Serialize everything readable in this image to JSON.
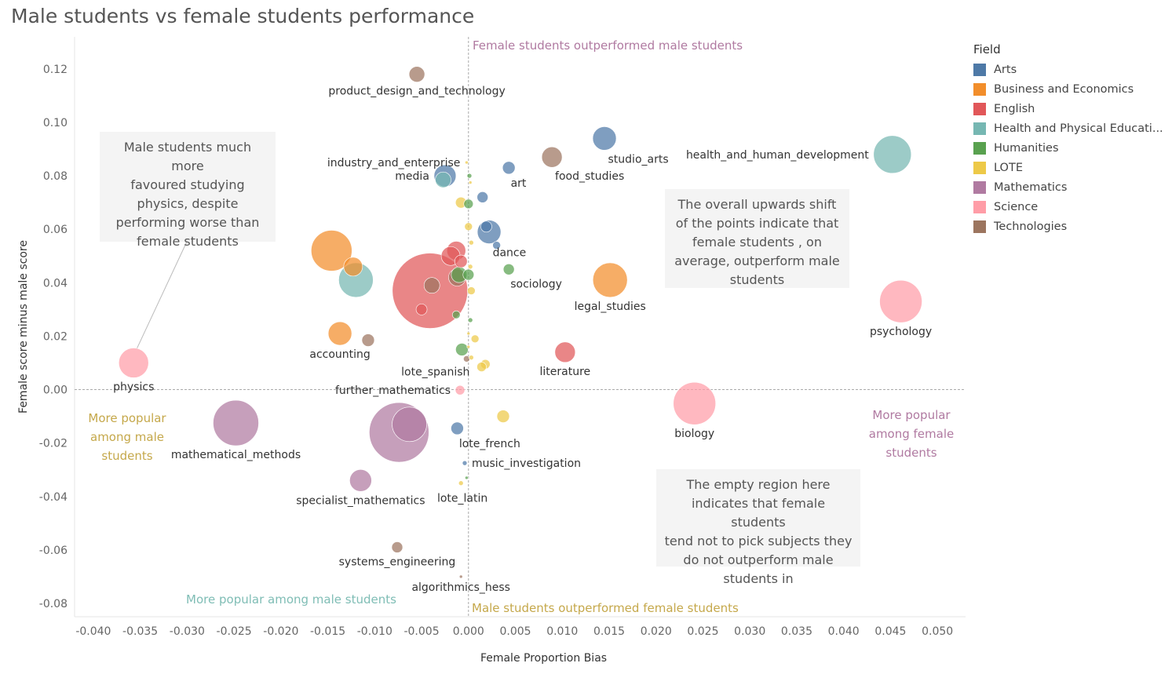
{
  "chart_data": {
    "type": "scatter",
    "title": "Male students vs female students performance",
    "xlabel": "Female Proportion Bias",
    "ylabel": "Female score minus male score",
    "xlim": [
      -0.042,
      0.053
    ],
    "ylim": [
      -0.085,
      0.132
    ],
    "x_ticks": [
      -0.04,
      -0.035,
      -0.03,
      -0.025,
      -0.02,
      -0.015,
      -0.01,
      -0.005,
      0.0,
      0.005,
      0.01,
      0.015,
      0.02,
      0.025,
      0.03,
      0.035,
      0.04,
      0.045,
      0.05
    ],
    "x_tick_labels": [
      "-0.040",
      "-0.035",
      "-0.030",
      "-0.025",
      "-0.020",
      "-0.015",
      "-0.010",
      "-0.005",
      "0.000",
      "0.005",
      "0.010",
      "0.015",
      "0.020",
      "0.025",
      "0.030",
      "0.035",
      "0.040",
      "0.045",
      "0.050"
    ],
    "y_ticks": [
      0.12,
      0.1,
      0.08,
      0.06,
      0.04,
      0.02,
      0.0,
      -0.02,
      -0.04,
      -0.06,
      -0.08
    ],
    "y_tick_labels": [
      "0.12",
      "0.10",
      "0.08",
      "0.06",
      "0.04",
      "0.02",
      "0.00",
      "-0.02",
      "-0.04",
      "-0.06",
      "-0.08"
    ],
    "grid": false,
    "legend": {
      "title": "Field",
      "position": "right",
      "entries": [
        {
          "name": "Arts",
          "color": "#4e79a7"
        },
        {
          "name": "Business and Economics",
          "color": "#f28e2b"
        },
        {
          "name": "English",
          "color": "#e15759"
        },
        {
          "name": "Health and Physical Educati...",
          "color": "#76b7b2"
        },
        {
          "name": "Humanities",
          "color": "#59a14f"
        },
        {
          "name": "LOTE",
          "color": "#edc948"
        },
        {
          "name": "Mathematics",
          "color": "#b07aa1"
        },
        {
          "name": "Science",
          "color": "#ff9da7"
        },
        {
          "name": "Technologies",
          "color": "#9c755f"
        }
      ]
    },
    "points": [
      {
        "label": "product_design_and_technology",
        "field": "Technologies",
        "x": -0.0055,
        "y": 0.118,
        "size": 10,
        "label_pos": "below"
      },
      {
        "label": "industry_and_enterprise",
        "field": "LOTE",
        "x": -0.0002,
        "y": 0.085,
        "size": 2,
        "label_pos": "left"
      },
      {
        "label": "media",
        "field": "Arts",
        "x": -0.0025,
        "y": 0.08,
        "size": 14,
        "label_pos": "left"
      },
      {
        "label": "",
        "field": "Health and Physical Educati...",
        "x": -0.0027,
        "y": 0.0785,
        "size": 10
      },
      {
        "label": "art",
        "field": "Arts",
        "x": 0.0043,
        "y": 0.083,
        "size": 8,
        "label_pos": "belowright"
      },
      {
        "label": "studio_arts",
        "field": "Arts",
        "x": 0.0145,
        "y": 0.094,
        "size": 15,
        "label_pos": "belowright"
      },
      {
        "label": "food_studies",
        "field": "Technologies",
        "x": 0.0089,
        "y": 0.087,
        "size": 13,
        "label_pos": "belowright"
      },
      {
        "label": "health_and_human_development",
        "field": "Health and Physical Educati...",
        "x": 0.0452,
        "y": 0.088,
        "size": 24,
        "label_pos": "left"
      },
      {
        "label": "",
        "field": "Humanities",
        "x": 0.0001,
        "y": 0.08,
        "size": 3
      },
      {
        "label": "",
        "field": "Arts",
        "x": 0.0015,
        "y": 0.072,
        "size": 7
      },
      {
        "label": "",
        "field": "LOTE",
        "x": -0.0008,
        "y": 0.07,
        "size": 7
      },
      {
        "label": "",
        "field": "Humanities",
        "x": 0.0,
        "y": 0.0695,
        "size": 6
      },
      {
        "label": "",
        "field": "LOTE",
        "x": 0.0002,
        "y": 0.0775,
        "size": 2
      },
      {
        "label": "",
        "field": "LOTE",
        "x": 0.0,
        "y": 0.061,
        "size": 5
      },
      {
        "label": "",
        "field": "Arts",
        "x": 0.0019,
        "y": 0.061,
        "size": 7
      },
      {
        "label": "dance",
        "field": "Arts",
        "x": 0.0022,
        "y": 0.059,
        "size": 15,
        "label_pos": "belowright"
      },
      {
        "label": "",
        "field": "Arts",
        "x": 0.003,
        "y": 0.054,
        "size": 5
      },
      {
        "label": "",
        "field": "LOTE",
        "x": 0.0003,
        "y": 0.055,
        "size": 3
      },
      {
        "label": "",
        "field": "Business and Economics",
        "x": -0.0146,
        "y": 0.052,
        "size": 26
      },
      {
        "label": "",
        "field": "Business and Economics",
        "x": -0.0123,
        "y": 0.046,
        "size": 12
      },
      {
        "label": "",
        "field": "Health and Physical Educati...",
        "x": -0.012,
        "y": 0.041,
        "size": 22
      },
      {
        "label": "",
        "field": "English",
        "x": -0.0013,
        "y": 0.052,
        "size": 12
      },
      {
        "label": "",
        "field": "English",
        "x": -0.0019,
        "y": 0.05,
        "size": 12
      },
      {
        "label": "",
        "field": "English",
        "x": -0.0008,
        "y": 0.048,
        "size": 8
      },
      {
        "label": "",
        "field": "English",
        "x": -0.0041,
        "y": 0.037,
        "size": 48
      },
      {
        "label": "",
        "field": "Technologies",
        "x": -0.0039,
        "y": 0.039,
        "size": 10
      },
      {
        "label": "",
        "field": "English",
        "x": -0.005,
        "y": 0.03,
        "size": 7
      },
      {
        "label": "",
        "field": "Technologies",
        "x": -0.0012,
        "y": 0.042,
        "size": 11
      },
      {
        "label": "",
        "field": "Humanities",
        "x": -0.001,
        "y": 0.043,
        "size": 10
      },
      {
        "label": "",
        "field": "Humanities",
        "x": 0.0,
        "y": 0.043,
        "size": 7
      },
      {
        "label": "sociology",
        "field": "Humanities",
        "x": 0.0043,
        "y": 0.045,
        "size": 7,
        "label_pos": "belowright"
      },
      {
        "label": "",
        "field": "LOTE",
        "x": 0.0003,
        "y": 0.037,
        "size": 5
      },
      {
        "label": "",
        "field": "LOTE",
        "x": 0.0002,
        "y": 0.046,
        "size": 3
      },
      {
        "label": "legal_studies",
        "field": "Business and Economics",
        "x": 0.0151,
        "y": 0.041,
        "size": 22,
        "label_pos": "below"
      },
      {
        "label": "psychology",
        "field": "Science",
        "x": 0.0461,
        "y": 0.033,
        "size": 27,
        "label_pos": "below"
      },
      {
        "label": "",
        "field": "Humanities",
        "x": -0.0013,
        "y": 0.028,
        "size": 5
      },
      {
        "label": "",
        "field": "Humanities",
        "x": 0.0002,
        "y": 0.026,
        "size": 3
      },
      {
        "label": "accounting",
        "field": "Business and Economics",
        "x": -0.0137,
        "y": 0.021,
        "size": 15,
        "label_pos": "below"
      },
      {
        "label": "",
        "field": "Technologies",
        "x": -0.0107,
        "y": 0.0185,
        "size": 8
      },
      {
        "label": "",
        "field": "LOTE",
        "x": 0.0007,
        "y": 0.019,
        "size": 5
      },
      {
        "label": "",
        "field": "Humanities",
        "x": -0.0007,
        "y": 0.015,
        "size": 8
      },
      {
        "label": "",
        "field": "LOTE",
        "x": 0.0,
        "y": 0.021,
        "size": 2
      },
      {
        "label": "",
        "field": "LOTE",
        "x": 0.0,
        "y": 0.016,
        "size": 2
      },
      {
        "label": "lote_spanish",
        "field": "Technologies",
        "x": -0.0002,
        "y": 0.0115,
        "size": 4,
        "label_pos": "belowleft"
      },
      {
        "label": "",
        "field": "LOTE",
        "x": 0.0003,
        "y": 0.012,
        "size": 3
      },
      {
        "label": "",
        "field": "LOTE",
        "x": 0.0018,
        "y": 0.0095,
        "size": 6
      },
      {
        "label": "",
        "field": "LOTE",
        "x": 0.0014,
        "y": 0.0085,
        "size": 6
      },
      {
        "label": "literature",
        "field": "English",
        "x": 0.0103,
        "y": 0.014,
        "size": 13,
        "label_pos": "below"
      },
      {
        "label": "physics",
        "field": "Science",
        "x": -0.0357,
        "y": 0.01,
        "size": 19,
        "label_pos": "below"
      },
      {
        "label": "further_mathematics",
        "field": "Science",
        "x": -0.0009,
        "y": -0.0002,
        "size": 6,
        "label_pos": "left"
      },
      {
        "label": "biology",
        "field": "Science",
        "x": 0.0241,
        "y": -0.0052,
        "size": 27,
        "label_pos": "below"
      },
      {
        "label": "mathematical_methods",
        "field": "Mathematics",
        "x": -0.0248,
        "y": -0.0125,
        "size": 29,
        "label_pos": "below"
      },
      {
        "label": "",
        "field": "Mathematics",
        "x": -0.0074,
        "y": -0.016,
        "size": 38
      },
      {
        "label": "",
        "field": "Mathematics",
        "x": -0.0063,
        "y": -0.013,
        "size": 22
      },
      {
        "label": "lote_french",
        "field": "Arts",
        "x": -0.0012,
        "y": -0.0145,
        "size": 8,
        "label_pos": "belowright"
      },
      {
        "label": "",
        "field": "LOTE",
        "x": 0.0037,
        "y": -0.01,
        "size": 8
      },
      {
        "label": "music_investigation",
        "field": "Arts",
        "x": -0.0004,
        "y": -0.0275,
        "size": 3,
        "label_pos": "right"
      },
      {
        "label": "",
        "field": "Humanities",
        "x": -0.0002,
        "y": -0.033,
        "size": 2
      },
      {
        "label": "lote_latin",
        "field": "LOTE",
        "x": -0.0008,
        "y": -0.035,
        "size": 3,
        "label_pos": "belowleftsmall"
      },
      {
        "label": "specialist_mathematics",
        "field": "Mathematics",
        "x": -0.0115,
        "y": -0.034,
        "size": 14,
        "label_pos": "below"
      },
      {
        "label": "systems_engineering",
        "field": "Technologies",
        "x": -0.0076,
        "y": -0.059,
        "size": 7,
        "label_pos": "below"
      },
      {
        "label": "algorithmics_hess",
        "field": "Technologies",
        "x": -0.0008,
        "y": -0.07,
        "size": 2,
        "label_pos": "below"
      }
    ],
    "annotations": {
      "top": "Female students outperformed male students",
      "bottom": "Male students outperformed female students",
      "bottom_left": "More popular among male students",
      "left": [
        "More popular",
        "among male",
        "students"
      ],
      "right": [
        "More popular",
        "among female",
        "students"
      ]
    }
  },
  "notes": {
    "physics_note": [
      "Male students much more",
      "favoured studying",
      "physics, despite",
      "performing worse than",
      "female students"
    ],
    "shift_note": [
      "The overall upwards shift",
      "of the points indicate that",
      "female students , on",
      "average, outperform male",
      "students"
    ],
    "empty_note": [
      "The empty region here",
      "indicates that female students",
      "tend not to pick subjects they",
      "do not outperform male",
      "students in"
    ]
  },
  "colors": {
    "top_annotation": "#b07aa1",
    "bottom_annotation": "#c5a84b",
    "bottom_left_annotation": "#7fbdb5",
    "left_annotation": "#c5a84b",
    "right_annotation": "#b07aa1"
  }
}
